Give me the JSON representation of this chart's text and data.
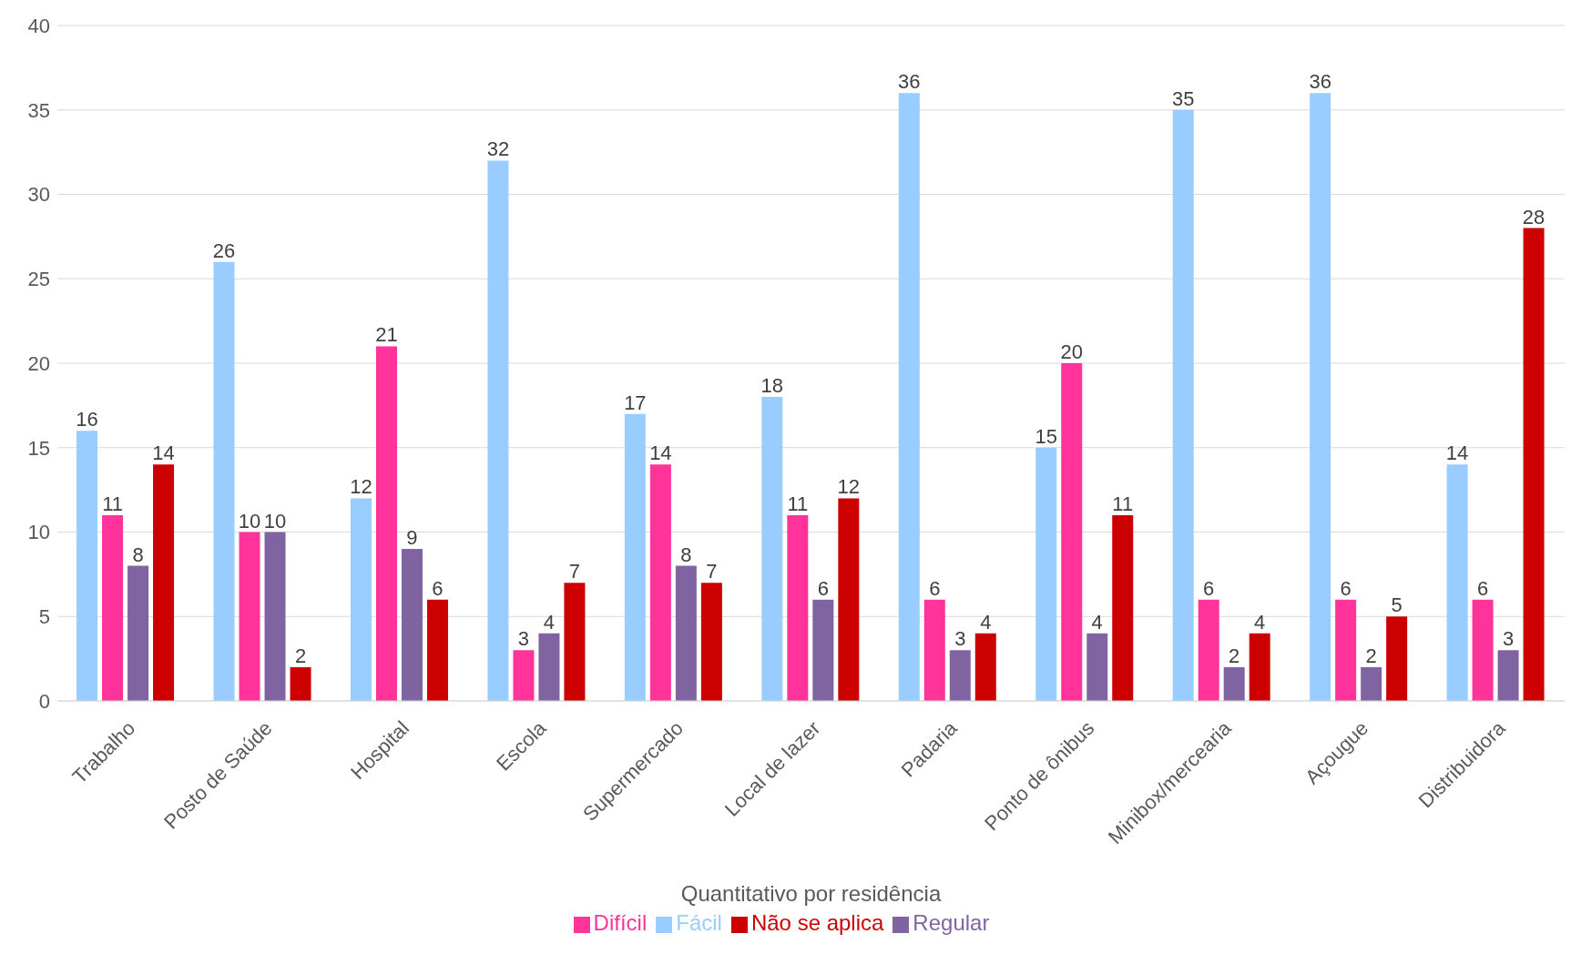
{
  "chart_data": {
    "type": "bar",
    "xlabel": "Quantitativo por residência",
    "categories": [
      "Trabalho",
      "Posto de Saúde",
      "Hospital",
      "Escola",
      "Supermercado",
      "Local de lazer",
      "Padaria",
      "Ponto de ônibus",
      "Minibox/mercearia",
      "Açougue",
      "Distribuidora"
    ],
    "series": [
      {
        "name": "Fácil",
        "color": "#99ccff",
        "values": [
          16,
          26,
          12,
          32,
          17,
          18,
          36,
          15,
          35,
          36,
          14
        ]
      },
      {
        "name": "Difícil",
        "color": "#ff3399",
        "values": [
          11,
          10,
          21,
          3,
          14,
          11,
          6,
          20,
          6,
          6,
          6
        ]
      },
      {
        "name": "Regular",
        "color": "#8064a2",
        "values": [
          8,
          10,
          9,
          4,
          8,
          6,
          3,
          4,
          2,
          2,
          3
        ]
      },
      {
        "name": "Não se aplica",
        "color": "#cc0000",
        "values": [
          14,
          2,
          6,
          7,
          7,
          12,
          4,
          11,
          4,
          5,
          28
        ]
      }
    ],
    "ylim": [
      0,
      40
    ],
    "yticks": [
      0,
      5,
      10,
      15,
      20,
      25,
      30,
      35,
      40
    ],
    "grid": "y",
    "legend": "bottom",
    "data_labels": true
  }
}
